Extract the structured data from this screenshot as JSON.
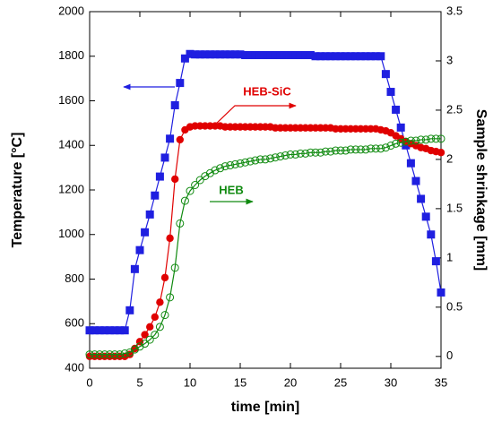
{
  "chart_data": {
    "type": "scatter_line",
    "xlabel": "time [min]",
    "ylabel": "Temperature [°C]",
    "y2label": "Sample shrinkage [mm]",
    "xlim": [
      0,
      35
    ],
    "xticks": [
      0,
      5,
      10,
      15,
      20,
      25,
      30,
      35
    ],
    "ylim": [
      400,
      2000
    ],
    "yticks": [
      400,
      600,
      800,
      1000,
      1200,
      1400,
      1600,
      1800,
      2000
    ],
    "y2lim": [
      -0.12,
      3.5
    ],
    "y2ticks": [
      0,
      0.5,
      1,
      1.5,
      2,
      2.5,
      3,
      3.5
    ],
    "x": [
      0,
      0.5,
      1,
      1.5,
      2,
      2.5,
      3,
      3.5,
      4,
      4.5,
      5,
      5.5,
      6,
      6.5,
      7,
      7.5,
      8,
      8.5,
      9,
      9.5,
      10,
      10.5,
      11,
      11.5,
      12,
      12.5,
      13,
      13.5,
      14,
      14.5,
      15,
      15.5,
      16,
      16.5,
      17,
      17.5,
      18,
      18.5,
      19,
      19.5,
      20,
      20.5,
      21,
      21.5,
      22,
      22.5,
      23,
      23.5,
      24,
      24.5,
      25,
      25.5,
      26,
      26.5,
      27,
      27.5,
      28,
      28.5,
      29,
      29.5,
      30,
      30.5,
      31,
      31.5,
      32,
      32.5,
      33,
      33.5,
      34,
      34.5,
      35
    ],
    "series": [
      {
        "color": "#1f1fe0",
        "marker": "square",
        "axis": "y",
        "values": [
          570,
          570,
          570,
          570,
          570,
          570,
          570,
          570,
          660,
          845,
          930,
          1010,
          1090,
          1175,
          1260,
          1345,
          1430,
          1580,
          1680,
          1790,
          1810,
          1808,
          1808,
          1808,
          1808,
          1808,
          1808,
          1808,
          1808,
          1808,
          1808,
          1805,
          1805,
          1805,
          1805,
          1805,
          1805,
          1805,
          1805,
          1805,
          1805,
          1805,
          1805,
          1805,
          1805,
          1800,
          1800,
          1800,
          1800,
          1800,
          1800,
          1800,
          1800,
          1800,
          1800,
          1800,
          1800,
          1800,
          1800,
          1720,
          1640,
          1560,
          1480,
          1400,
          1320,
          1240,
          1160,
          1080,
          1000,
          880,
          740
        ]
      },
      {
        "color": "#e00000",
        "marker": "filled-circle",
        "axis": "y2",
        "values": [
          0,
          0,
          0,
          0,
          0,
          0,
          0,
          0,
          0.02,
          0.08,
          0.15,
          0.22,
          0.3,
          0.4,
          0.55,
          0.8,
          1.2,
          1.8,
          2.2,
          2.3,
          2.33,
          2.34,
          2.34,
          2.34,
          2.34,
          2.34,
          2.34,
          2.33,
          2.33,
          2.33,
          2.33,
          2.33,
          2.33,
          2.33,
          2.33,
          2.33,
          2.33,
          2.32,
          2.32,
          2.32,
          2.32,
          2.32,
          2.32,
          2.32,
          2.32,
          2.32,
          2.32,
          2.32,
          2.32,
          2.31,
          2.31,
          2.31,
          2.31,
          2.31,
          2.31,
          2.31,
          2.31,
          2.31,
          2.3,
          2.29,
          2.27,
          2.24,
          2.21,
          2.18,
          2.16,
          2.14,
          2.12,
          2.11,
          2.09,
          2.08,
          2.07
        ]
      },
      {
        "color": "#108a10",
        "marker": "open-circle",
        "axis": "y2",
        "values": [
          0.02,
          0.02,
          0.02,
          0.02,
          0.02,
          0.02,
          0.02,
          0.03,
          0.04,
          0.07,
          0.1,
          0.13,
          0.17,
          0.22,
          0.3,
          0.42,
          0.6,
          0.9,
          1.35,
          1.58,
          1.68,
          1.74,
          1.79,
          1.83,
          1.86,
          1.89,
          1.91,
          1.93,
          1.94,
          1.95,
          1.96,
          1.97,
          1.98,
          1.99,
          2.0,
          2.0,
          2.01,
          2.02,
          2.03,
          2.04,
          2.05,
          2.05,
          2.06,
          2.06,
          2.07,
          2.07,
          2.07,
          2.08,
          2.08,
          2.09,
          2.09,
          2.09,
          2.1,
          2.1,
          2.1,
          2.1,
          2.11,
          2.11,
          2.11,
          2.12,
          2.14,
          2.16,
          2.17,
          2.18,
          2.19,
          2.19,
          2.2,
          2.2,
          2.21,
          2.21,
          2.21
        ]
      }
    ],
    "annotations": [
      {
        "text": "HEB-SiC",
        "color": "#e00000"
      },
      {
        "text": "HEB",
        "color": "#108a10"
      }
    ]
  }
}
